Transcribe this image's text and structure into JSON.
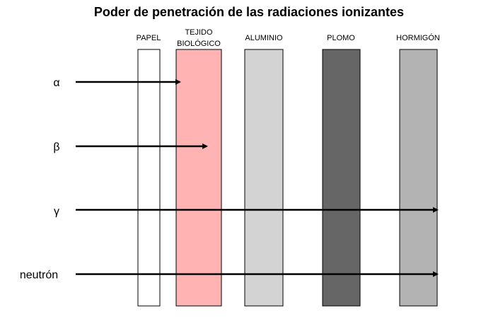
{
  "title": "Poder de penetración de las radiaciones ionizantes",
  "materials": [
    {
      "label": [
        "PAPEL"
      ]
    },
    {
      "label": [
        "TEJIDO",
        "BIOLÓGICO"
      ]
    },
    {
      "label": [
        "ALUMINIO"
      ]
    },
    {
      "label": [
        "PLOMO"
      ]
    },
    {
      "label": [
        "HORMIGÓN"
      ]
    }
  ],
  "radiations": [
    {
      "label": "α"
    },
    {
      "label": "β"
    },
    {
      "label": "γ"
    },
    {
      "label": "neutrón"
    }
  ]
}
